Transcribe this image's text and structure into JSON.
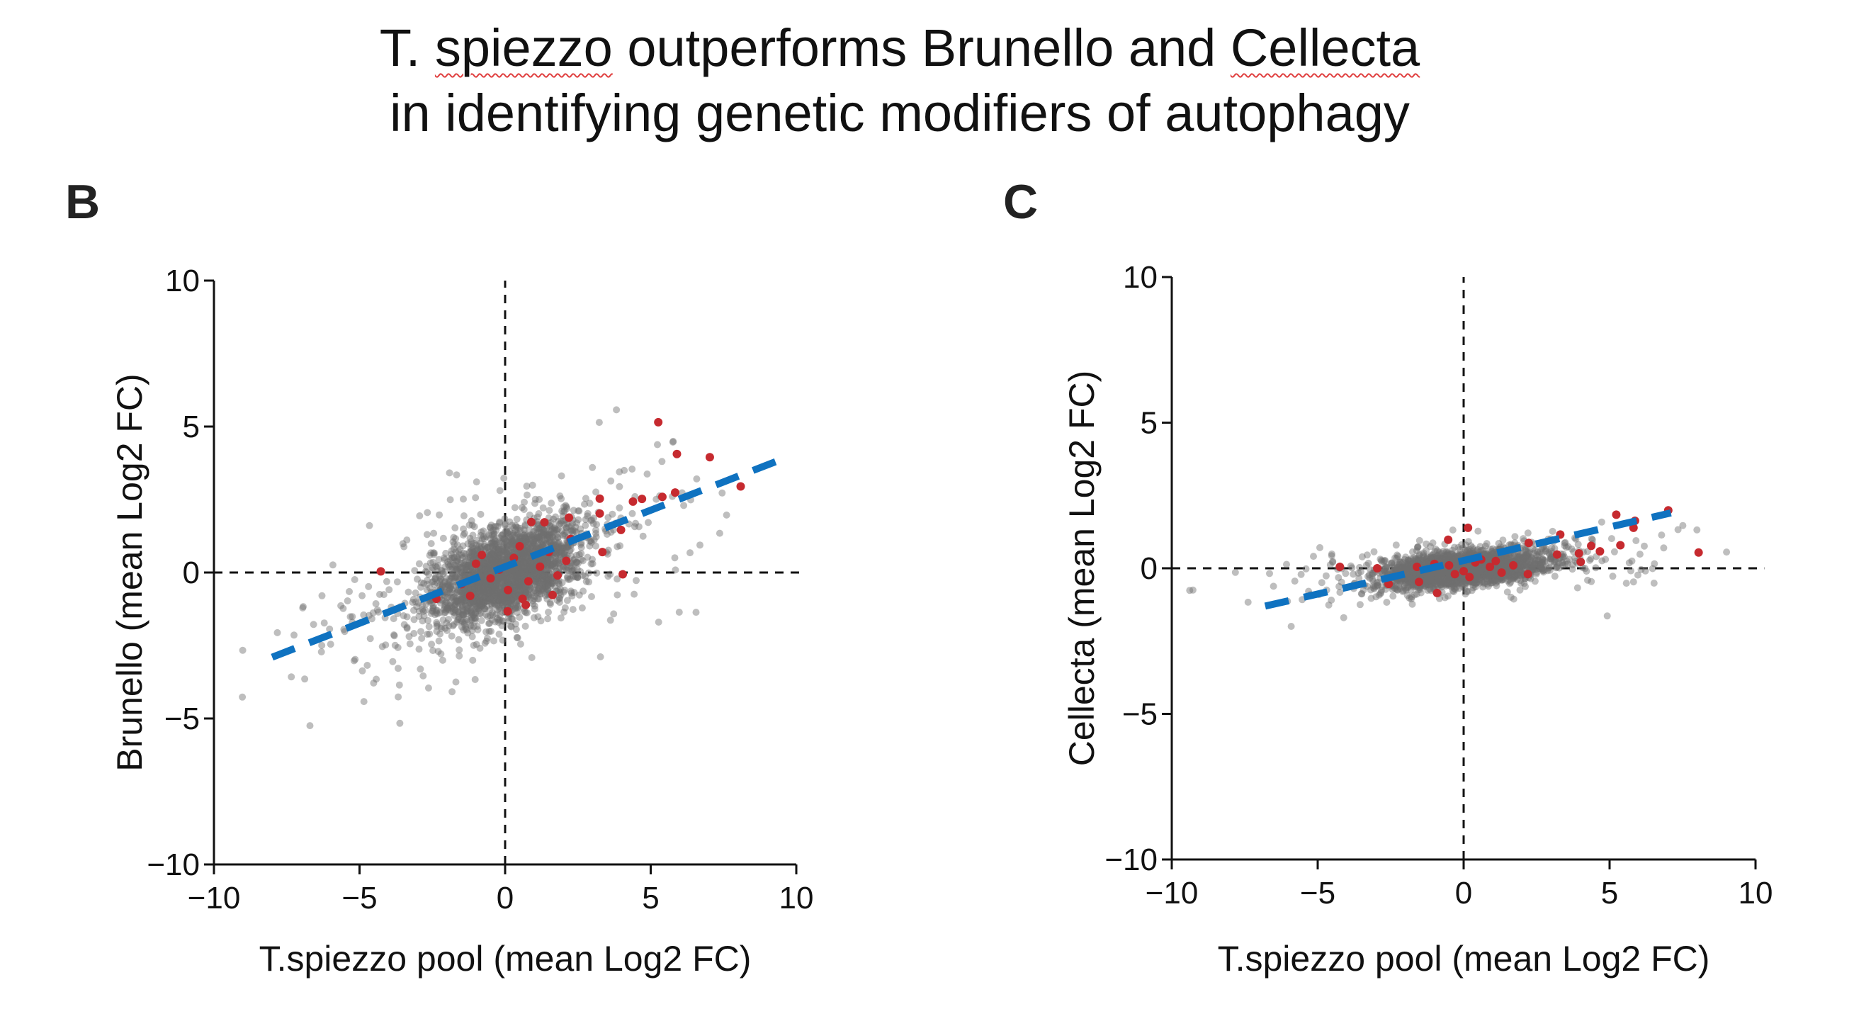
{
  "title": {
    "line1_parts": [
      "T. ",
      "spiezzo",
      " outperforms Brunello and ",
      "Cellecta"
    ],
    "line2": "in identifying genetic modifiers of autophagy"
  },
  "colors": {
    "background_points": "#6e6e6e",
    "highlight_points": "#c62a2f",
    "fit_line": "#0f72c0",
    "axes": "#111111"
  },
  "chart_data": [
    {
      "panel": "B",
      "type": "scatter",
      "xlabel": "T.spiezzo pool (mean Log2 FC)",
      "ylabel": "Brunello (mean Log2 FC)",
      "xlim": [
        -10,
        10
      ],
      "ylim": [
        -10,
        10
      ],
      "xticks": [
        "−10",
        "−5",
        "0",
        "5",
        "10"
      ],
      "yticks": [
        "−10",
        "−5",
        "0",
        "5",
        "10"
      ],
      "grid": false,
      "reference_lines": {
        "x": 0,
        "y": 0,
        "style": "dashed"
      },
      "fit_line": {
        "style": "dashed",
        "from": [
          -8.0,
          -2.9
        ],
        "to": [
          9.3,
          3.8
        ]
      },
      "highlight_points": [
        [
          5.26,
          5.15
        ],
        [
          5.9,
          4.06
        ],
        [
          7.03,
          3.95
        ],
        [
          8.09,
          2.95
        ],
        [
          5.84,
          2.74
        ],
        [
          5.4,
          2.59
        ],
        [
          4.7,
          2.52
        ],
        [
          4.39,
          2.43
        ],
        [
          3.25,
          2.53
        ],
        [
          3.25,
          2.02
        ],
        [
          2.19,
          1.88
        ],
        [
          1.35,
          1.72
        ],
        [
          0.9,
          1.73
        ],
        [
          3.98,
          1.46
        ],
        [
          2.25,
          1.15
        ],
        [
          3.34,
          0.7
        ],
        [
          4.04,
          -0.06
        ],
        [
          0.09,
          -1.33
        ],
        [
          -2.36,
          -0.9
        ],
        [
          0.71,
          -1.11
        ],
        [
          1.63,
          -0.77
        ],
        [
          -4.27,
          0.04
        ],
        [
          -1.0,
          0.3
        ],
        [
          -0.5,
          -0.2
        ],
        [
          0.3,
          0.5
        ],
        [
          0.8,
          -0.3
        ],
        [
          1.2,
          0.2
        ],
        [
          -0.2,
          0.1
        ],
        [
          0.5,
          0.9
        ],
        [
          -1.5,
          -0.4
        ],
        [
          1.8,
          -0.1
        ],
        [
          2.1,
          0.4
        ],
        [
          0.1,
          -0.6
        ],
        [
          -0.8,
          0.6
        ],
        [
          1.5,
          0.7
        ],
        [
          -1.2,
          -0.8
        ],
        [
          0.6,
          -0.9
        ]
      ]
    },
    {
      "panel": "C",
      "type": "scatter",
      "xlabel": "T.spiezzo pool (mean Log2 FC)",
      "ylabel": "Cellecta (mean Log2 FC)",
      "xlim": [
        -10,
        10
      ],
      "ylim": [
        -10,
        10
      ],
      "xticks": [
        "−10",
        "−5",
        "0",
        "5",
        "10"
      ],
      "yticks": [
        "−10",
        "−5",
        "0",
        "5",
        "10"
      ],
      "grid": false,
      "reference_lines": {
        "x": 0,
        "y": 0,
        "style": "dashed"
      },
      "fit_line": {
        "style": "dashed",
        "from": [
          -6.8,
          -1.3
        ],
        "to": [
          7.1,
          1.9
        ]
      },
      "highlight_points": [
        [
          7.01,
          1.99
        ],
        [
          5.23,
          1.84
        ],
        [
          5.87,
          1.63
        ],
        [
          5.82,
          1.39
        ],
        [
          5.37,
          0.79
        ],
        [
          4.67,
          0.58
        ],
        [
          4.37,
          0.77
        ],
        [
          8.05,
          0.54
        ],
        [
          3.95,
          0.51
        ],
        [
          4.01,
          0.22
        ],
        [
          3.2,
          0.47
        ],
        [
          3.31,
          1.16
        ],
        [
          2.23,
          0.87
        ],
        [
          0.15,
          1.39
        ],
        [
          -0.53,
          0.98
        ],
        [
          -0.91,
          -0.85
        ],
        [
          -1.53,
          -0.47
        ],
        [
          -2.57,
          -0.54
        ],
        [
          -4.24,
          0.05
        ],
        [
          -2.96,
          0.0
        ],
        [
          -0.5,
          0.1
        ],
        [
          0.0,
          -0.1
        ],
        [
          0.4,
          0.2
        ],
        [
          0.9,
          0.05
        ],
        [
          1.3,
          -0.15
        ],
        [
          -1.0,
          0.15
        ],
        [
          0.2,
          -0.3
        ],
        [
          1.7,
          0.1
        ],
        [
          -0.3,
          -0.2
        ],
        [
          0.6,
          0.3
        ],
        [
          1.1,
          0.25
        ],
        [
          2.2,
          -0.2
        ],
        [
          -1.6,
          0.05
        ]
      ]
    }
  ]
}
